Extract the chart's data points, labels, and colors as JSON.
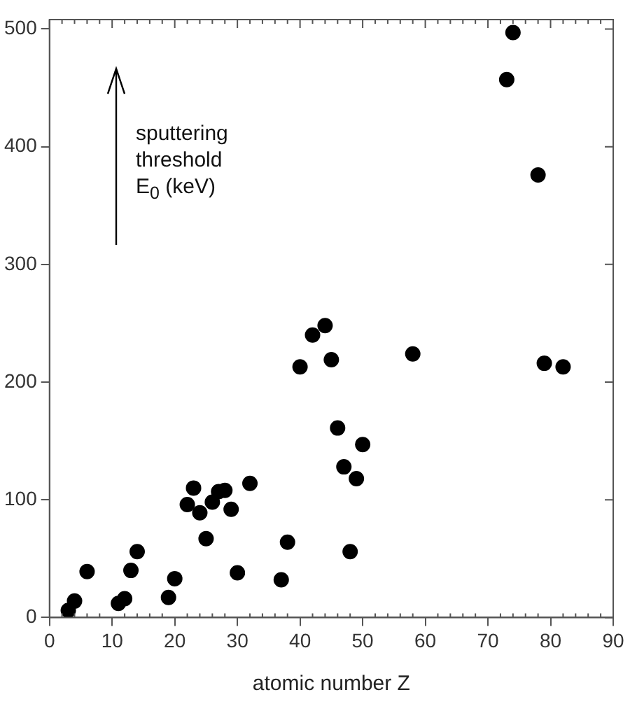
{
  "chart_data": {
    "type": "scatter",
    "xlabel": "atomic number Z",
    "annotations": [
      "sputtering threshold E$_{0}$ (keV)"
    ],
    "x": [
      3,
      4,
      6,
      11,
      12,
      13,
      14,
      19,
      20,
      22,
      23,
      24,
      25,
      26,
      27,
      28,
      29,
      30,
      32,
      37,
      38,
      40,
      42,
      44,
      45,
      46,
      47,
      48,
      49,
      50,
      58,
      73,
      74,
      78,
      79,
      82
    ],
    "values": [
      6,
      14,
      39,
      12,
      16,
      40,
      56,
      17,
      33,
      96,
      110,
      89,
      67,
      98,
      107,
      108,
      92,
      38,
      114,
      32,
      64,
      213,
      240,
      248,
      219,
      161,
      128,
      56,
      118,
      147,
      224,
      457,
      497,
      376,
      216,
      213
    ],
    "color": "#000000",
    "marker": "circle",
    "grid": false,
    "legend": false,
    "xlim": [
      0,
      90
    ],
    "xticks": [
      0,
      10,
      20,
      30,
      40,
      50,
      60,
      70,
      80,
      90
    ],
    "ylim": [
      0,
      508
    ],
    "yticks": [
      0,
      100,
      200,
      300,
      400,
      500
    ]
  }
}
